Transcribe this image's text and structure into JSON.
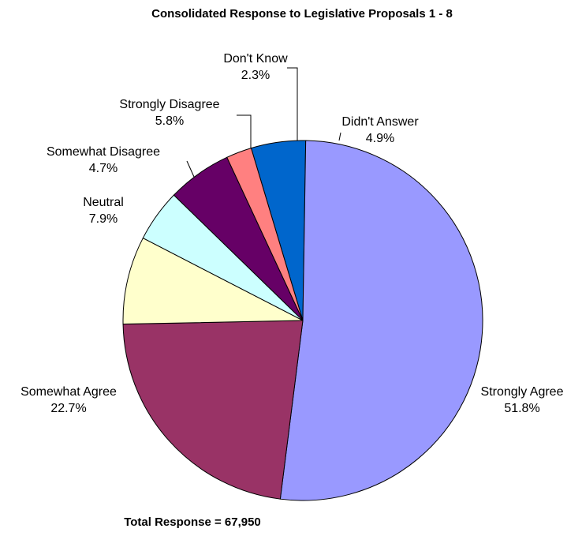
{
  "chart_data": {
    "type": "pie",
    "title": "Consolidated Response to Legislative Proposals 1 - 8",
    "footer": "Total Response = 67,950",
    "slices": [
      {
        "name": "Didn't Answer",
        "value": 4.9,
        "label": "4.9%",
        "color": "#0066CC"
      },
      {
        "name": "Strongly Agree",
        "value": 51.8,
        "label": "51.8%",
        "color": "#9999FF"
      },
      {
        "name": "Somewhat Agree",
        "value": 22.7,
        "label": "22.7%",
        "color": "#993366"
      },
      {
        "name": "Neutral",
        "value": 7.9,
        "label": "7.9%",
        "color": "#FFFFCC"
      },
      {
        "name": "Somewhat Disagree",
        "value": 4.7,
        "label": "4.7%",
        "color": "#CCFFFF"
      },
      {
        "name": "Strongly Disagree",
        "value": 5.8,
        "label": "5.8%",
        "color": "#660066"
      },
      {
        "name": "Don't Know",
        "value": 2.3,
        "label": "2.3%",
        "color": "#FF8080"
      }
    ]
  }
}
